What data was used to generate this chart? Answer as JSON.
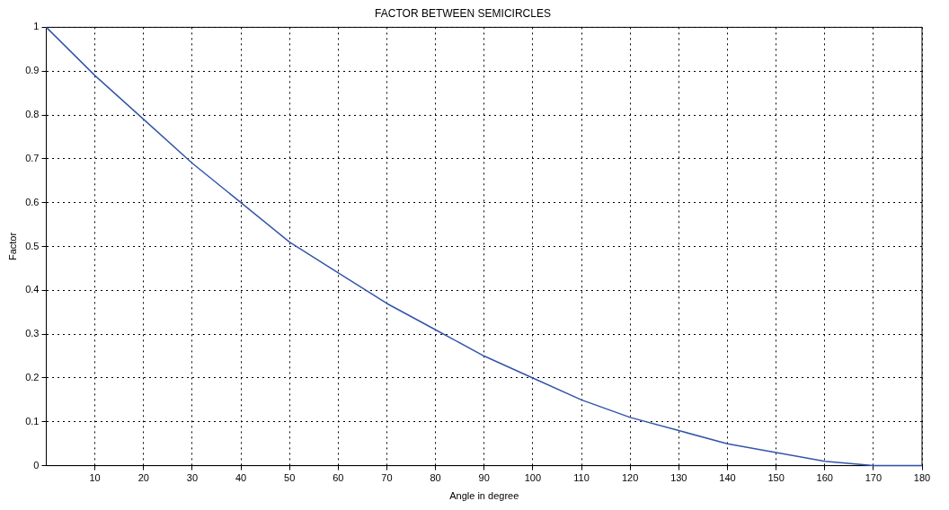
{
  "chart_data": {
    "type": "line",
    "title": "FACTOR BETWEEN SEMICIRCLES",
    "xlabel": "Angle in degree",
    "ylabel": "Factor",
    "x": [
      0,
      10,
      20,
      30,
      40,
      50,
      60,
      70,
      80,
      90,
      100,
      110,
      120,
      130,
      140,
      150,
      160,
      170,
      180
    ],
    "series": [
      {
        "color": "#3355aa",
        "values": [
          1,
          0.89,
          0.79,
          0.69,
          0.6,
          0.51,
          0.44,
          0.37,
          0.31,
          0.25,
          0.2,
          0.15,
          0.11,
          0.08,
          0.05,
          0.03,
          0.01,
          0,
          0
        ]
      }
    ],
    "xlim": [
      0,
      180
    ],
    "xticks": [
      10,
      20,
      30,
      40,
      50,
      60,
      70,
      80,
      90,
      100,
      110,
      120,
      130,
      140,
      150,
      160,
      170,
      180
    ],
    "ylim": [
      0,
      1
    ],
    "yticks": [
      0,
      0.1,
      0.2,
      0.3,
      0.4,
      0.5,
      0.6,
      0.7,
      0.8,
      0.9,
      1
    ],
    "grid": true,
    "legend": false,
    "marker": "none",
    "line_style": "solid"
  }
}
